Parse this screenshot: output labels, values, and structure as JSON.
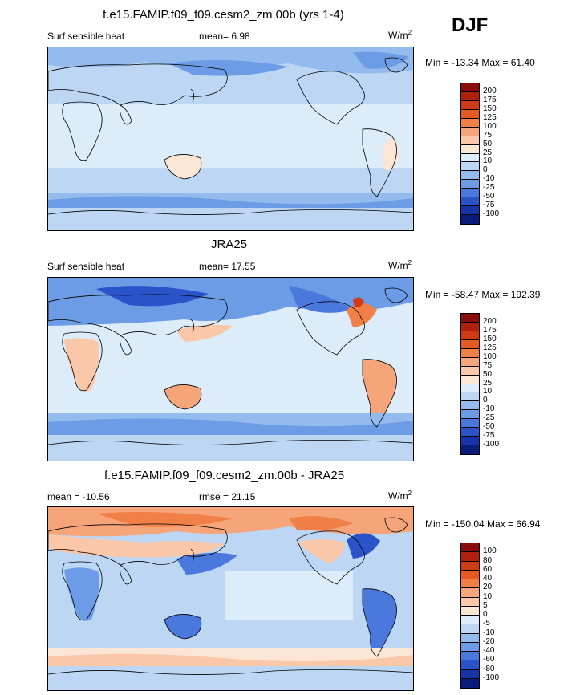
{
  "season": "DJF",
  "panels": [
    {
      "title": "f.e15.FAMIP.f09_f09.cesm2_zm.00b (yrs 1-4)",
      "left_label": "Surf sensible heat",
      "center_label": "mean=  6.98",
      "units": "W/m",
      "units_sup": "2",
      "minmax": "Min = -13.34 Max =  61.40",
      "colorbar": {
        "labels": [
          "200",
          "175",
          "150",
          "125",
          "100",
          "75",
          "50",
          "25",
          "10",
          "0",
          "-10",
          "-25",
          "-50",
          "-75",
          "-100"
        ],
        "colors": [
          "#8a0c0c",
          "#b0200e",
          "#d03a14",
          "#e55a22",
          "#f08048",
          "#f6a47a",
          "#fac7a8",
          "#fbe6d6",
          "#dcecf9",
          "#bcd6f3",
          "#94bbee",
          "#6d9ce6",
          "#4a78dd",
          "#2a53c9",
          "#1633a8",
          "#0a1c7a"
        ]
      }
    },
    {
      "title": "JRA25",
      "left_label": "Surf sensible heat",
      "center_label": "mean=  17.55",
      "units": "W/m",
      "units_sup": "2",
      "minmax": "Min = -58.47 Max = 192.39",
      "colorbar": {
        "labels": [
          "200",
          "175",
          "150",
          "125",
          "100",
          "75",
          "50",
          "25",
          "10",
          "0",
          "-10",
          "-25",
          "-50",
          "-75",
          "-100"
        ],
        "colors": [
          "#8a0c0c",
          "#b0200e",
          "#d03a14",
          "#e55a22",
          "#f08048",
          "#f6a47a",
          "#fac7a8",
          "#fbe6d6",
          "#dcecf9",
          "#bcd6f3",
          "#94bbee",
          "#6d9ce6",
          "#4a78dd",
          "#2a53c9",
          "#1633a8",
          "#0a1c7a"
        ]
      }
    },
    {
      "title": "f.e15.FAMIP.f09_f09.cesm2_zm.00b - JRA25",
      "left_label": "mean = -10.56",
      "center_label": "rmse =  21.15",
      "units": "W/m",
      "units_sup": "2",
      "minmax": "Min = -150.04 Max =  66.94",
      "colorbar": {
        "labels": [
          "100",
          "80",
          "60",
          "40",
          "20",
          "10",
          "5",
          "0",
          "-5",
          "-10",
          "-20",
          "-40",
          "-60",
          "-80",
          "-100"
        ],
        "colors": [
          "#8a0c0c",
          "#b0200e",
          "#d03a14",
          "#e55a22",
          "#f08048",
          "#f6a47a",
          "#fac7a8",
          "#fbe6d6",
          "#dcecf9",
          "#bcd6f3",
          "#94bbee",
          "#6d9ce6",
          "#4a78dd",
          "#2a53c9",
          "#1633a8",
          "#0a1c7a"
        ]
      }
    }
  ]
}
